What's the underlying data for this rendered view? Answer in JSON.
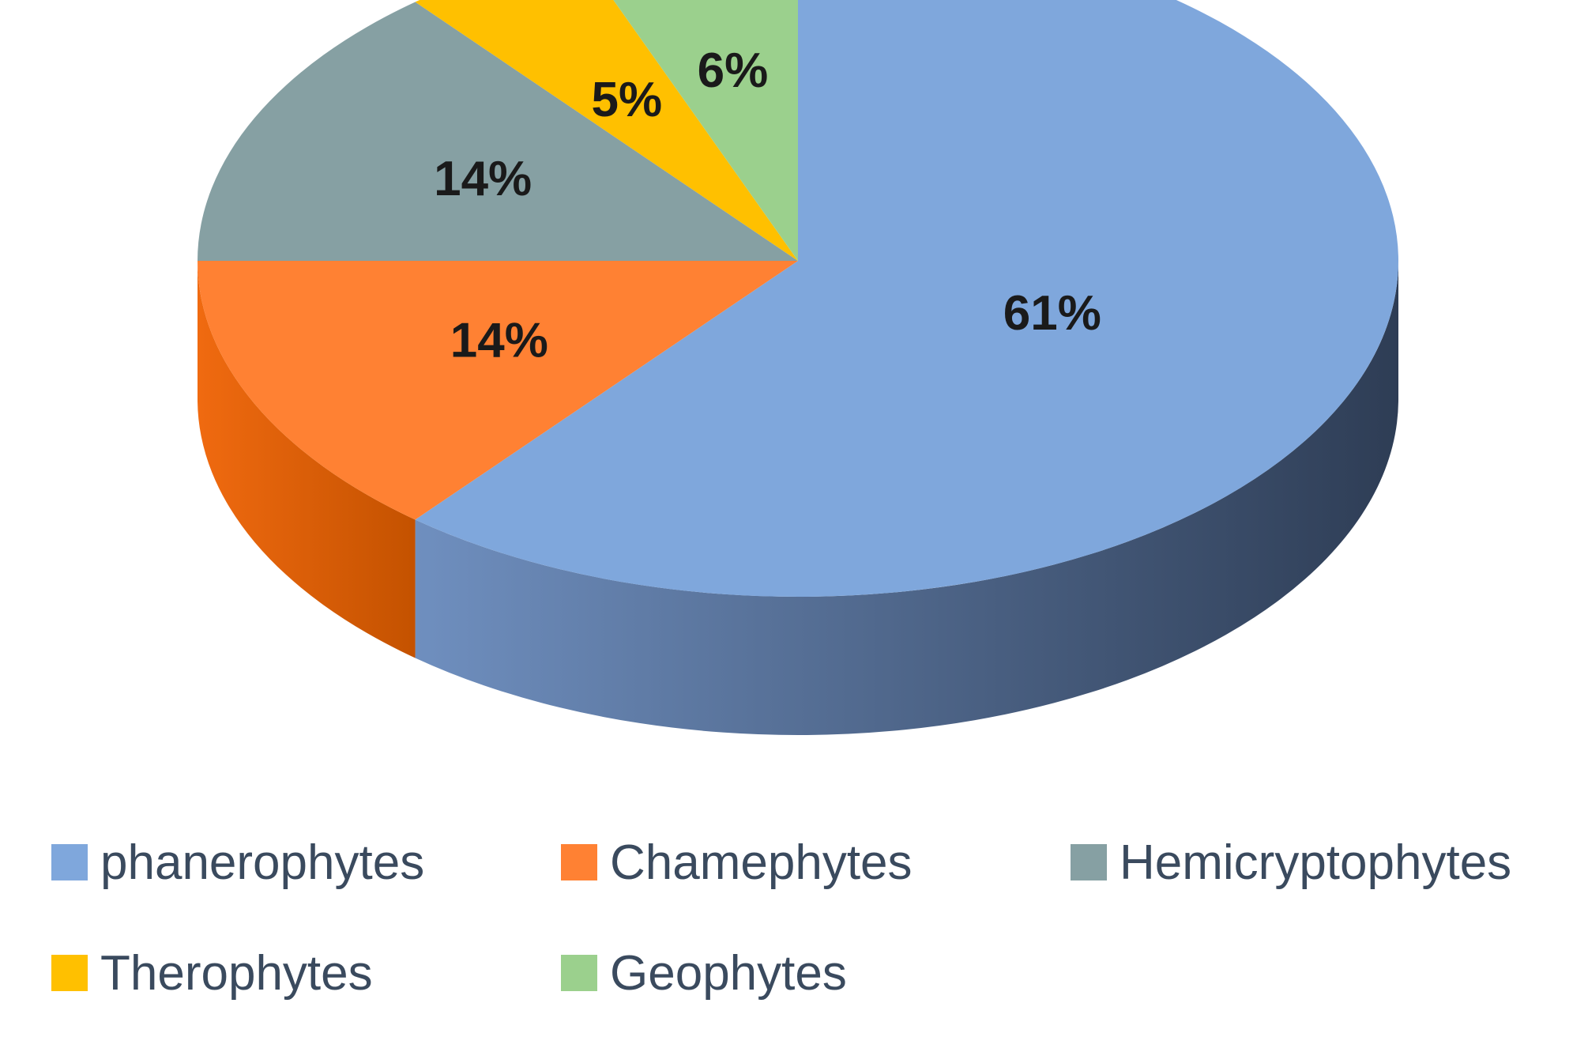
{
  "chart_data": {
    "type": "pie",
    "style": "3d",
    "title": "",
    "slices": [
      {
        "name": "phanerophytes",
        "value": 61,
        "label": "61%",
        "color": "#7fa7dc",
        "side_dark": "#2e3d55",
        "side_light": "#6f8fbf"
      },
      {
        "name": "Chamephytes",
        "value": 14,
        "label": "14%",
        "color": "#ff8133",
        "side_dark": "#c45200",
        "side_light": "#f06a10"
      },
      {
        "name": "Hemicryptophytes",
        "value": 14,
        "label": "14%",
        "color": "#86a0a3",
        "side_dark": "#5a7174",
        "side_light": "#86a0a3"
      },
      {
        "name": "Therophytes",
        "value": 5,
        "label": "5%",
        "color": "#ffc000",
        "side_dark": "#b38600",
        "side_light": "#ffc000"
      },
      {
        "name": "Geophytes",
        "value": 6,
        "label": "6%",
        "color": "#9bd08d",
        "side_dark": "#6c9a60",
        "side_light": "#9bd08d"
      }
    ],
    "legend_placement": "bottom"
  }
}
